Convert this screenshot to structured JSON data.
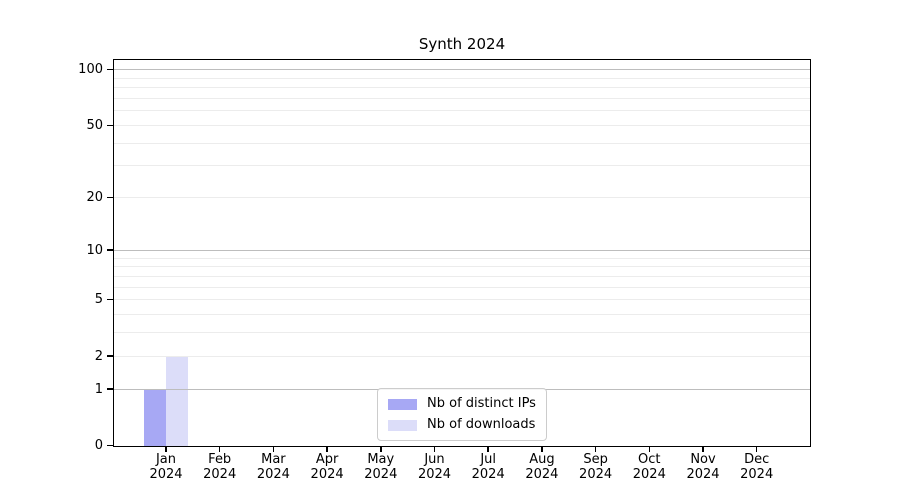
{
  "chart_data": {
    "type": "bar",
    "title": "Synth 2024",
    "categories": [
      "Jan",
      "Feb",
      "Mar",
      "Apr",
      "May",
      "Jun",
      "Jul",
      "Aug",
      "Sep",
      "Oct",
      "Nov",
      "Dec"
    ],
    "year": "2024",
    "series": [
      {
        "name": "Nb of distinct IPs",
        "color": "#a7a8f4",
        "values": [
          1,
          0,
          0,
          0,
          0,
          0,
          0,
          0,
          0,
          0,
          0,
          0
        ]
      },
      {
        "name": "Nb of downloads",
        "color": "#dcddf9",
        "values": [
          2,
          0,
          0,
          0,
          0,
          0,
          0,
          0,
          0,
          0,
          0,
          0
        ]
      }
    ],
    "yscale": "log1p",
    "yticks": [
      0,
      1,
      2,
      5,
      10,
      20,
      50,
      100
    ],
    "ylim": [
      0,
      113
    ],
    "grid": {
      "minor_values": [
        2,
        3,
        4,
        5,
        6,
        7,
        8,
        9,
        20,
        30,
        40,
        50,
        60,
        70,
        80,
        90
      ],
      "major_values": [
        1,
        10,
        100
      ],
      "minor_color": "#ececec",
      "major_color": "#bdbdbd"
    },
    "legend": {
      "position": "lower center"
    },
    "colors": {
      "spine": "#000000",
      "text": "#000000",
      "background": "#ffffff"
    }
  }
}
